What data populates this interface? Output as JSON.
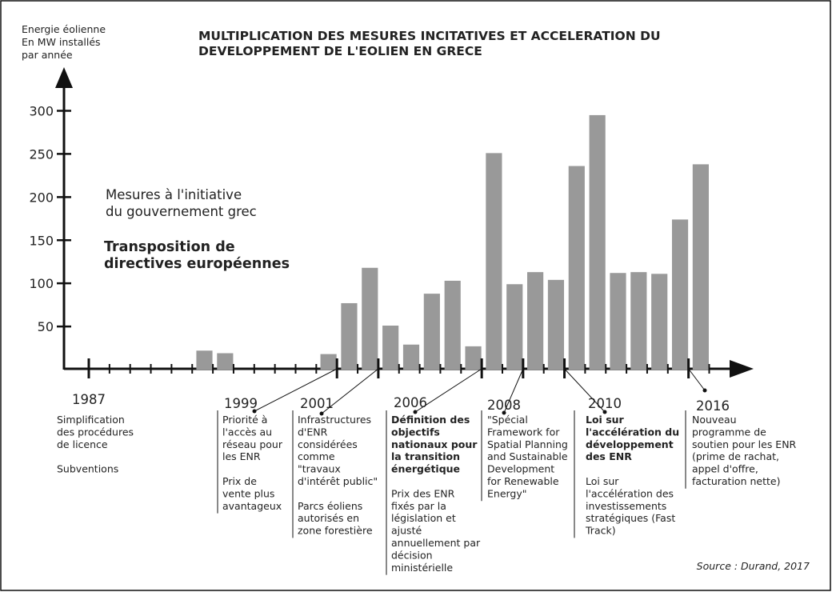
{
  "chart_data": {
    "type": "bar",
    "title": [
      "MULTIPLICATION DES MESURES INCITATIVES ET ACCELERATION DU",
      "DEVELOPPEMENT DE L'EOLIEN EN GRECE"
    ],
    "y_label": [
      "Energie éolienne",
      "En MW installés",
      "par année"
    ],
    "categories": [
      "1987",
      null,
      null,
      null,
      null,
      null,
      null,
      null,
      null,
      null,
      null,
      null,
      "1999",
      null,
      "2001",
      null,
      null,
      null,
      null,
      "2006",
      null,
      "2008",
      null,
      "2010",
      null,
      null,
      null,
      null,
      null,
      "2016"
    ],
    "values": [
      0,
      0,
      0,
      0,
      0,
      22,
      19,
      0,
      0,
      0,
      0,
      18,
      77,
      118,
      51,
      29,
      88,
      103,
      27,
      251,
      99,
      113,
      104,
      236,
      295,
      112,
      113,
      111,
      174,
      238
    ],
    "color": "#999999",
    "ylim": [
      0,
      345
    ],
    "yticks": [
      50,
      100,
      150,
      200,
      250,
      300
    ],
    "legend": [
      {
        "lines": [
          "Mesures à l'initiative",
          "du gouvernement grec"
        ],
        "color": "#222222",
        "bold": false
      },
      {
        "lines": [
          "Transposition de",
          "directives européennes"
        ],
        "color": "#a00000",
        "bold": true
      }
    ],
    "annotations": [
      {
        "category": 0,
        "blocks": [
          {
            "legend": 0,
            "lines": [
              "Simplification",
              "des procédures",
              "de licence"
            ]
          },
          {
            "legend": 0,
            "lines": [
              "Subventions"
            ]
          }
        ]
      },
      {
        "category": 12,
        "blocks": [
          {
            "legend": 0,
            "lines": [
              "Priorité à",
              "l'accès au",
              "réseau pour",
              "les ENR"
            ]
          },
          {
            "legend": 0,
            "lines": [
              "Prix de",
              "vente plus",
              "avantageux"
            ]
          }
        ]
      },
      {
        "category": 14,
        "blocks": [
          {
            "legend": 0,
            "lines": [
              "Infrastructures",
              "d'ENR",
              "considérées",
              "comme",
              "\"travaux",
              "d'intérêt public\""
            ]
          },
          {
            "legend": 0,
            "lines": [
              "Parcs éoliens",
              "autorisés en",
              "zone forestière"
            ]
          }
        ]
      },
      {
        "category": 19,
        "blocks": [
          {
            "legend": 1,
            "lines": [
              "Définition des",
              "objectifs",
              "nationaux pour",
              "la transition",
              "énergétique"
            ]
          },
          {
            "legend": 0,
            "lines": [
              "Prix des ENR",
              "fixés par la",
              "législation et",
              "ajusté",
              "annuellement par",
              "décision",
              "ministérielle"
            ]
          }
        ]
      },
      {
        "category": 21,
        "blocks": [
          {
            "legend": 0,
            "lines": [
              "\"Spécial",
              "Framework for",
              "Spatial Planning",
              "and Sustainable",
              "Development",
              "for Renewable",
              "Energy\""
            ]
          }
        ]
      },
      {
        "category": 23,
        "blocks": [
          {
            "legend": 1,
            "lines": [
              "Loi sur",
              "l'accélération du",
              "développement",
              "des ENR"
            ]
          },
          {
            "legend": 0,
            "lines": [
              "Loi sur",
              "l'accélération des",
              "investissements",
              "stratégiques (Fast",
              "Track)"
            ]
          }
        ]
      },
      {
        "category": 29,
        "blocks": [
          {
            "legend": 0,
            "lines": [
              "Nouveau",
              "programme de",
              "soutien pour les ENR",
              "(prime de rachat,",
              "appel d'offre,",
              "facturation nette)"
            ]
          }
        ]
      }
    ],
    "source": "Source : Durand, 2017"
  }
}
